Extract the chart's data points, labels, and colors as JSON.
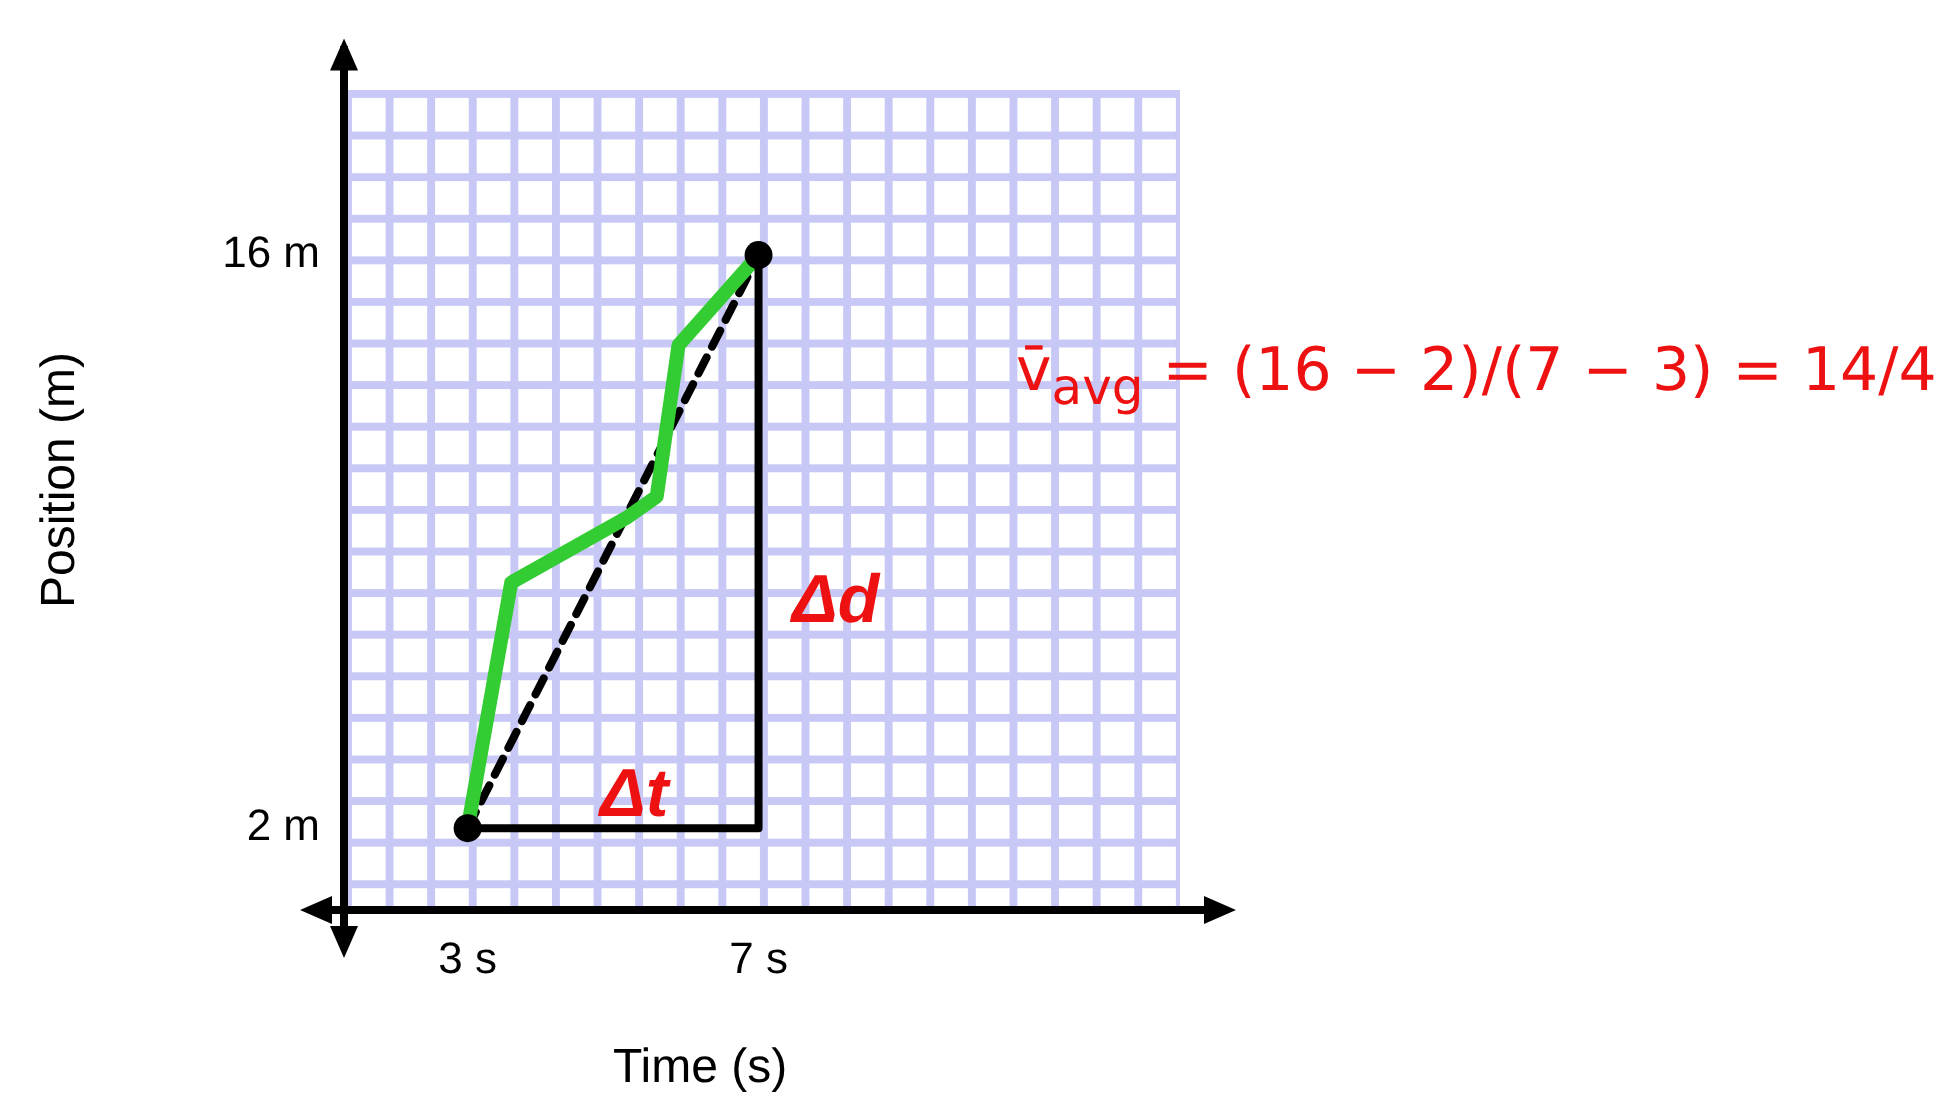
{
  "chart_data": {
    "type": "line",
    "xlabel": "Time (s)",
    "ylabel": "Position (m)",
    "xlim": [
      1.3,
      13.4
    ],
    "ylim": [
      0,
      21
    ],
    "xticks": [
      {
        "value": 3,
        "label": "3 s"
      },
      {
        "value": 7,
        "label": "7 s"
      }
    ],
    "yticks": [
      {
        "value": 2,
        "label": "2 m"
      },
      {
        "value": 16,
        "label": "16 m"
      }
    ],
    "series": [
      {
        "x": [
          7,
          7,
          3
        ],
        "values": [
          16,
          2,
          2
        ],
        "color": "#000000",
        "line_style": "solid",
        "marker": "none"
      },
      {
        "x": [
          3,
          3.6,
          5.2,
          5.6,
          5.9,
          7
        ],
        "values": [
          2,
          8,
          9.6,
          10.1,
          13.8,
          16
        ],
        "color": "#33cc33",
        "line_style": "solid",
        "marker": "none"
      },
      {
        "x": [
          3,
          7
        ],
        "values": [
          2,
          16
        ],
        "color": "#000000",
        "line_style": "dashed",
        "marker": "none"
      },
      {
        "type": "scatter",
        "x": [
          3,
          7
        ],
        "values": [
          2,
          16
        ],
        "color": "#000000",
        "marker": "circle"
      }
    ],
    "annotations": [
      "Δt",
      "Δd",
      "v̄$_{avg}$ = (16 − 2)/(7 − 3) = 14/4"
    ]
  }
}
